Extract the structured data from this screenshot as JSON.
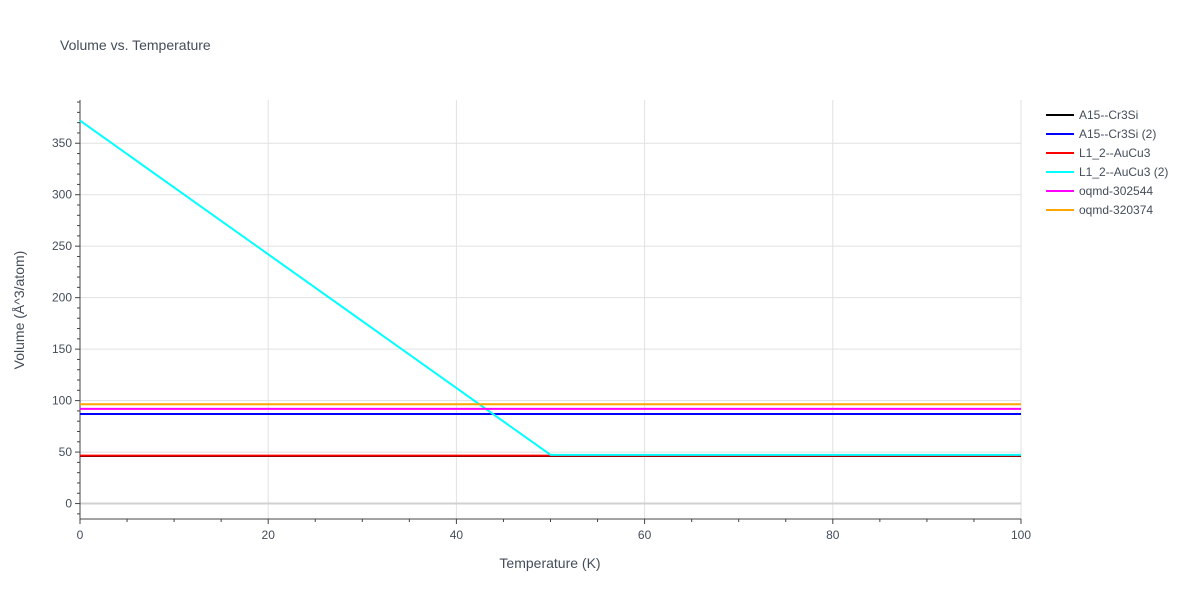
{
  "chart_data": {
    "type": "line",
    "title": "Volume vs. Temperature",
    "xlabel": "Temperature (K)",
    "ylabel": "Volume (Å^3/atom)",
    "xlim": [
      0,
      100
    ],
    "ylim": [
      -15,
      392
    ],
    "x_ticks": [
      0,
      20,
      40,
      60,
      80,
      100
    ],
    "y_ticks": [
      0,
      50,
      100,
      150,
      200,
      250,
      300,
      350
    ],
    "grid": true,
    "legend_position": "top-right",
    "series": [
      {
        "name": "A15--Cr3Si",
        "color": "#000000",
        "x": [
          0,
          100
        ],
        "y": [
          46.2,
          46.2
        ]
      },
      {
        "name": "A15--Cr3Si (2)",
        "color": "#0000ff",
        "x": [
          0,
          100
        ],
        "y": [
          87.0,
          87.0
        ]
      },
      {
        "name": "L1_2--AuCu3",
        "color": "#ff0000",
        "x": [
          0,
          100
        ],
        "y": [
          46.6,
          46.6
        ]
      },
      {
        "name": "L1_2--AuCu3 (2)",
        "color": "#00ffff",
        "x": [
          0,
          50,
          100
        ],
        "y": [
          372.0,
          47.3,
          47.3
        ]
      },
      {
        "name": "oqmd-302544",
        "color": "#ff00ff",
        "x": [
          0,
          100
        ],
        "y": [
          92.0,
          92.0
        ]
      },
      {
        "name": "oqmd-320374",
        "color": "#ffa500",
        "x": [
          0,
          100
        ],
        "y": [
          96.5,
          96.5
        ]
      }
    ]
  }
}
